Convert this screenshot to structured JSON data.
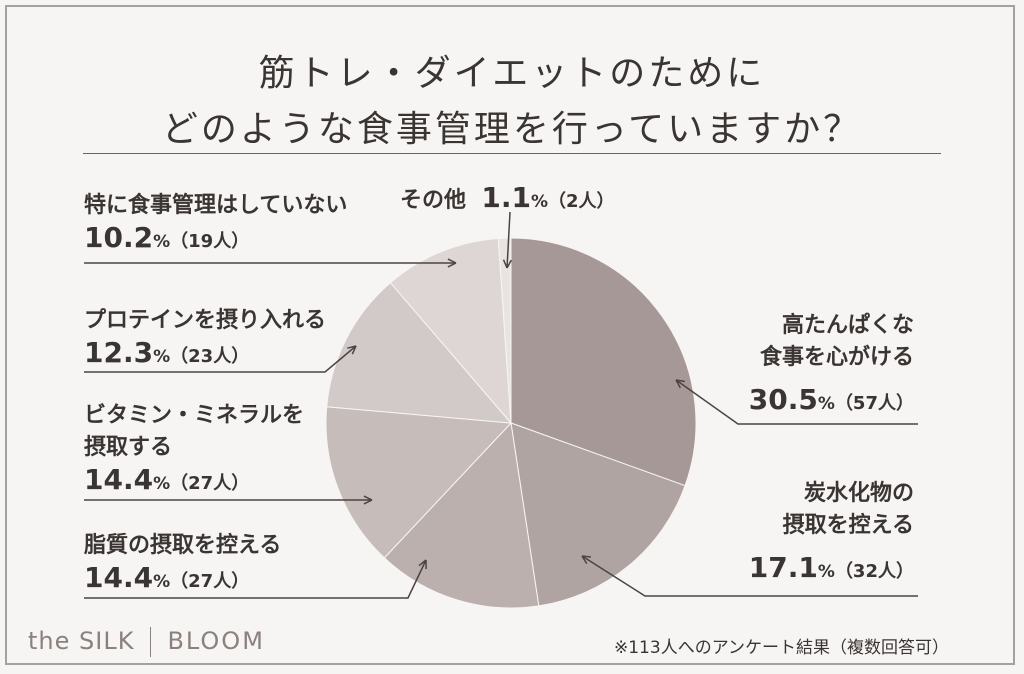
{
  "title_line1": "筋トレ・ダイエットのために",
  "title_line2": "どのような食事管理を行っていますか？",
  "chart_data": {
    "type": "pie",
    "title": "筋トレ・ダイエットのために どのような食事管理を行っていますか？",
    "slices": [
      {
        "label": "高たんぱくな食事を心がける",
        "value": 30.5,
        "count": 57,
        "color": "#a69896"
      },
      {
        "label": "炭水化物の摂取を控える",
        "value": 17.1,
        "count": 32,
        "color": "#b0a4a2"
      },
      {
        "label": "脂質の摂取を控える",
        "value": 14.4,
        "count": 27,
        "color": "#bbb0ae"
      },
      {
        "label": "ビタミン・ミネラルを摂取する",
        "value": 14.4,
        "count": 27,
        "color": "#c6bdbb"
      },
      {
        "label": "プロテインを摂り入れる",
        "value": 12.3,
        "count": 23,
        "color": "#d2cac8"
      },
      {
        "label": "特に食事管理はしていない",
        "value": 10.2,
        "count": 19,
        "color": "#ddd6d4"
      },
      {
        "label": "その他",
        "value": 1.1,
        "count": 2,
        "color": "#e9e4e2"
      }
    ]
  },
  "labels": {
    "high_protein_l1": "高たんぱくな",
    "high_protein_l2": "食事を心がける",
    "high_protein_pct": "30.5",
    "high_protein_cnt": "（57人）",
    "carb_l1": "炭水化物の",
    "carb_l2": "摂取を控える",
    "carb_pct": "17.1",
    "carb_cnt": "（32人）",
    "fat_l1": "脂質の摂取を控える",
    "fat_pct": "14.4",
    "fat_cnt": "（27人）",
    "vit_l1": "ビタミン・ミネラルを",
    "vit_l2": "摂取する",
    "vit_pct": "14.4",
    "vit_cnt": "（27人）",
    "protein_l1": "プロテインを摂り入れる",
    "protein_pct": "12.3",
    "protein_cnt": "（23人）",
    "none_l1": "特に食事管理はしていない",
    "none_pct": "10.2",
    "none_cnt": "（19人）",
    "other_l1": "その他",
    "other_pct": "1.1",
    "other_cnt": "（2人）",
    "percent_sign": "%"
  },
  "brand_left": "the SILK",
  "brand_right": "BLOOM",
  "footnote": "※113人へのアンケート結果（複数回答可）"
}
